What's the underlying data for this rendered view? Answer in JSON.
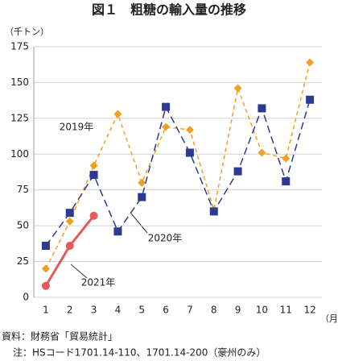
{
  "chart_data": {
    "type": "line",
    "title": "図１　粗糖の輸入量の推移",
    "y_unit": "（千トン）",
    "x_unit": "（月）",
    "categories": [
      "1",
      "2",
      "3",
      "4",
      "5",
      "6",
      "7",
      "8",
      "9",
      "10",
      "11",
      "12"
    ],
    "series": [
      {
        "name": "2019年",
        "color": "#f0a020",
        "values": [
          20,
          53,
          92,
          128,
          80,
          119,
          117,
          61,
          146,
          101,
          97,
          164
        ]
      },
      {
        "name": "2020年",
        "color": "#2b3a93",
        "values": [
          36,
          59,
          85.5,
          46,
          70,
          133,
          101,
          60,
          88,
          132,
          81,
          138
        ]
      },
      {
        "name": "2021年",
        "color": "#e35a5a",
        "values": [
          8,
          36,
          57,
          null,
          null,
          null,
          null,
          null,
          null,
          null,
          null,
          null
        ]
      }
    ],
    "ylim": [
      0,
      175
    ],
    "yticks": [
      0,
      25,
      50,
      75,
      100,
      125,
      150,
      175
    ],
    "grid": true,
    "notes": [
      "資料：財務省「貿易統計」",
      "注：HSコード1701.14-110、1701.14-200（豪州のみ）"
    ]
  }
}
